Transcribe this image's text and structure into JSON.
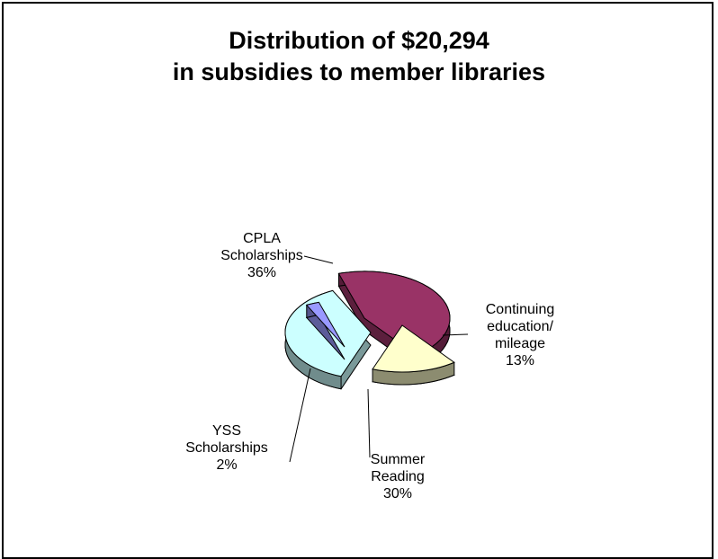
{
  "chart_data": {
    "type": "pie",
    "title_lines": [
      "Distribution of $20,294",
      "in subsidies to member libraries"
    ],
    "slices": [
      {
        "label_lines": [
          "CPLA",
          "Scholarships",
          "36%"
        ],
        "value": 36,
        "color": "#993366"
      },
      {
        "label_lines": [
          "Continuing",
          "education/",
          "mileage",
          "13%"
        ],
        "value": 13,
        "color": "#FFFFCC"
      },
      {
        "label_lines": [
          "Summer",
          "Reading",
          "30%"
        ],
        "value": 30,
        "color": "#CCFFFF"
      },
      {
        "label_lines": [
          "YSS",
          "Scholarships",
          "2%"
        ],
        "value": 2,
        "color": "#9999FF"
      }
    ]
  }
}
